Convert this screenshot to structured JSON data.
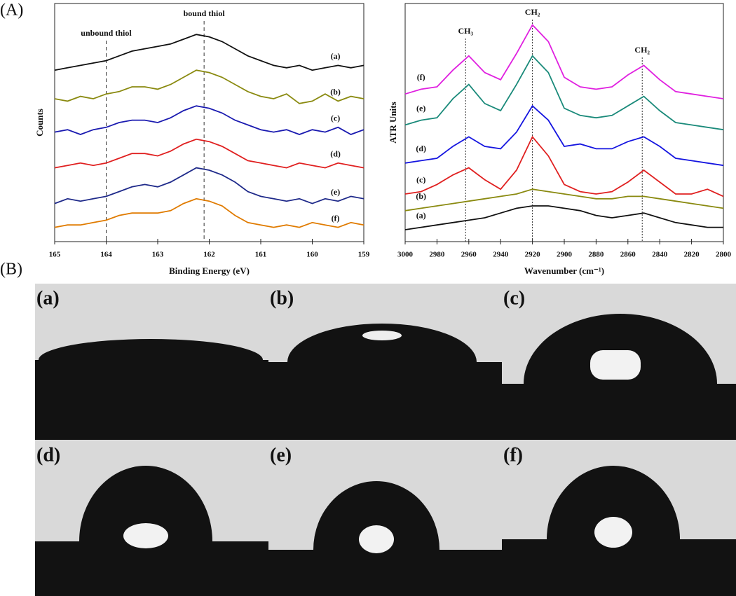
{
  "figure": {
    "panel_labels": [
      "(A)",
      "(B)"
    ]
  },
  "chart_data": [
    {
      "type": "line",
      "xlabel": "Binding Energy (eV)",
      "ylabel": "Counts",
      "x": [
        165,
        164.75,
        164.5,
        164.25,
        164,
        163.75,
        163.5,
        163.25,
        163,
        162.75,
        162.5,
        162.25,
        162,
        161.75,
        161.5,
        161.25,
        161,
        160.75,
        160.5,
        160.25,
        160,
        159.75,
        159.5,
        159.25,
        159
      ],
      "xlim": [
        165,
        159
      ],
      "xticks": [
        165,
        164,
        163,
        162,
        161,
        160,
        159
      ],
      "ylim": [
        0,
        100
      ],
      "annotations": [
        {
          "text": "unbound thiol",
          "x": 164
        },
        {
          "text": "bound thiol",
          "x": 162.1
        }
      ],
      "series": [
        {
          "name": "(a)",
          "color": "#111111",
          "values": [
            72,
            73,
            74,
            75,
            76,
            78,
            80,
            81,
            82,
            83,
            85,
            87,
            86,
            84,
            81,
            78,
            76,
            74,
            73,
            74,
            72,
            73,
            74,
            73,
            74
          ]
        },
        {
          "name": "(b)",
          "color": "#8a8a10",
          "values": [
            60,
            59,
            61,
            60,
            62,
            63,
            65,
            65,
            64,
            66,
            69,
            72,
            71,
            69,
            66,
            63,
            61,
            60,
            62,
            58,
            59,
            62,
            59,
            61,
            60
          ]
        },
        {
          "name": "(c)",
          "color": "#1a1ab0",
          "values": [
            46,
            47,
            45,
            47,
            48,
            50,
            51,
            51,
            50,
            52,
            55,
            57,
            56,
            54,
            51,
            49,
            47,
            46,
            47,
            45,
            47,
            46,
            48,
            45,
            47
          ]
        },
        {
          "name": "(d)",
          "color": "#e02020",
          "values": [
            31,
            32,
            33,
            32,
            33,
            35,
            37,
            37,
            36,
            38,
            41,
            43,
            42,
            40,
            37,
            34,
            33,
            32,
            31,
            33,
            32,
            31,
            33,
            32,
            31
          ]
        },
        {
          "name": "(e)",
          "color": "#1f2a8a",
          "values": [
            16,
            18,
            17,
            18,
            19,
            21,
            23,
            24,
            23,
            25,
            28,
            31,
            30,
            28,
            25,
            21,
            19,
            18,
            17,
            18,
            16,
            18,
            17,
            19,
            18
          ]
        },
        {
          "name": "(f)",
          "color": "#e07b00",
          "values": [
            6,
            7,
            7,
            8,
            9,
            11,
            12,
            12,
            12,
            13,
            16,
            18,
            17,
            15,
            11,
            8,
            7,
            6,
            7,
            6,
            8,
            7,
            6,
            8,
            7
          ]
        }
      ]
    },
    {
      "type": "line",
      "xlabel": "Wavenumber (cm⁻¹)",
      "ylabel": "ATR Units",
      "x": [
        3000,
        2990,
        2980,
        2970,
        2960,
        2950,
        2940,
        2930,
        2920,
        2910,
        2900,
        2890,
        2880,
        2870,
        2860,
        2850,
        2840,
        2830,
        2820,
        2810,
        2800
      ],
      "xlim": [
        3000,
        2800
      ],
      "xticks": [
        3000,
        2980,
        2960,
        2940,
        2920,
        2900,
        2880,
        2860,
        2840,
        2820,
        2800
      ],
      "ylim": [
        0,
        100
      ],
      "annotations": [
        {
          "text": "CH₃",
          "x": 2962
        },
        {
          "text": "CH₂",
          "x": 2920
        },
        {
          "text": "CH₂",
          "x": 2851
        }
      ],
      "series": [
        {
          "name": "(f)",
          "color": "#e020e0",
          "values": [
            62,
            64,
            65,
            72,
            78,
            71,
            68,
            79,
            91,
            84,
            69,
            65,
            64,
            65,
            70,
            74,
            68,
            63,
            62,
            61,
            60
          ]
        },
        {
          "name": "(e)",
          "color": "#1a8a7a",
          "values": [
            49,
            51,
            52,
            60,
            66,
            58,
            55,
            66,
            78,
            71,
            56,
            53,
            52,
            53,
            57,
            61,
            55,
            50,
            49,
            48,
            47
          ]
        },
        {
          "name": "(d)",
          "color": "#1515e0",
          "values": [
            33,
            34,
            35,
            40,
            44,
            40,
            39,
            46,
            57,
            51,
            40,
            41,
            39,
            39,
            42,
            44,
            40,
            35,
            34,
            33,
            32
          ]
        },
        {
          "name": "(c)",
          "color": "#e02020",
          "values": [
            20,
            21,
            24,
            28,
            31,
            26,
            22,
            30,
            44,
            36,
            24,
            21,
            20,
            21,
            25,
            30,
            25,
            20,
            20,
            22,
            19
          ]
        },
        {
          "name": "(b)",
          "color": "#8a8a10",
          "values": [
            13,
            14,
            15,
            16,
            17,
            18,
            19,
            20,
            22,
            21,
            20,
            19,
            18,
            18,
            19,
            19,
            18,
            17,
            16,
            15,
            14
          ]
        },
        {
          "name": "(a)",
          "color": "#111111",
          "values": [
            5,
            6,
            7,
            8,
            9,
            10,
            12,
            14,
            15,
            15,
            14,
            13,
            11,
            10,
            11,
            12,
            10,
            8,
            7,
            6,
            6
          ]
        }
      ]
    }
  ],
  "photos": {
    "labels": [
      "(a)",
      "(b)",
      "(c)",
      "(d)",
      "(e)",
      "(f)"
    ]
  }
}
